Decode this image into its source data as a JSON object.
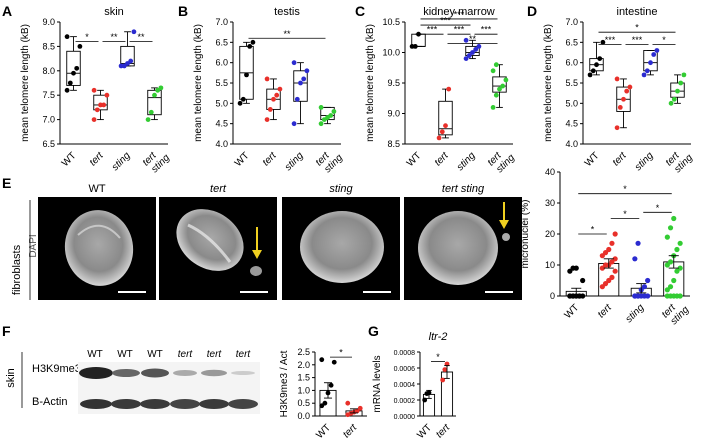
{
  "figure": {
    "panels": [
      {
        "letter": "A",
        "title": "skin",
        "ylabel": "mean telomere length (kB)"
      },
      {
        "letter": "B",
        "title": "testis",
        "ylabel": "mean telomere length (kB)"
      },
      {
        "letter": "C",
        "title": "kidney marrow",
        "ylabel": "mean telomere length (kB)"
      },
      {
        "letter": "D",
        "title": "intestine",
        "ylabel": "mean telomere length (kB)"
      },
      {
        "letter": "E",
        "side_label": "fibroblasts",
        "stain_label": "DAPI",
        "ylabel": "micronuclei (%)"
      },
      {
        "letter": "F",
        "tissue_label": "skin",
        "ylabel": "H3K9me3 / Act"
      },
      {
        "letter": "G",
        "title": "ltr-2",
        "ylabel": "mRNA levels"
      }
    ],
    "genotypes": [
      "WT",
      "tert",
      "sting",
      "tert sting"
    ],
    "micrograph_titles": [
      "WT",
      "tert",
      "sting",
      "tert  sting"
    ],
    "blot": {
      "lane_labels": [
        "WT",
        "WT",
        "WT",
        "tert",
        "tert",
        "tert"
      ],
      "rows": [
        "H3K9me3",
        "B-Actin"
      ]
    },
    "colors": {
      "WT": "#000000",
      "tert": "#e8302a",
      "sting": "#2b2bd0",
      "tert sting": "#33cc33",
      "arrow": "#f0d020"
    }
  },
  "chart_data": [
    {
      "panel": "A",
      "type": "box",
      "title": "skin",
      "ylabel": "mean telomere length (kB)",
      "ylim": [
        6.5,
        9.0
      ],
      "ticks": [
        "6.5",
        "7.0",
        "7.5",
        "8.0",
        "8.5",
        "9.0"
      ],
      "categories": [
        "WT",
        "tert",
        "sting",
        "tert sting"
      ],
      "boxes": [
        {
          "min": 7.6,
          "q1": 7.7,
          "med": 7.95,
          "q3": 8.4,
          "max": 8.7
        },
        {
          "min": 7.0,
          "q1": 7.2,
          "med": 7.3,
          "q3": 7.5,
          "max": 7.6
        },
        {
          "min": 8.1,
          "q1": 8.1,
          "med": 8.15,
          "q3": 8.5,
          "max": 8.8
        },
        {
          "min": 7.0,
          "q1": 7.1,
          "med": 7.45,
          "q3": 7.6,
          "max": 7.65
        }
      ],
      "points": [
        [
          7.6,
          7.75,
          7.95,
          8.05,
          8.5,
          8.7
        ],
        [
          7.0,
          7.2,
          7.3,
          7.3,
          7.5,
          7.6
        ],
        [
          8.1,
          8.1,
          8.15,
          8.2,
          8.8
        ],
        [
          7.0,
          7.15,
          7.5,
          7.6,
          7.65
        ]
      ],
      "sig": [
        {
          "a": 0,
          "b": 1,
          "label": "*",
          "y": 8.6
        },
        {
          "a": 1,
          "b": 2,
          "label": "**",
          "y": 8.6
        },
        {
          "a": 2,
          "b": 3,
          "label": "**",
          "y": 8.6
        }
      ]
    },
    {
      "panel": "B",
      "type": "box",
      "title": "testis",
      "ylabel": "mean telomere length (kB)",
      "ylim": [
        4.0,
        7.0
      ],
      "ticks": [
        "4.0",
        "4.5",
        "5.0",
        "5.5",
        "6.0",
        "6.5",
        "7.0"
      ],
      "categories": [
        "WT",
        "tert",
        "sting",
        "tert sting"
      ],
      "boxes": [
        {
          "min": 5.0,
          "q1": 5.1,
          "med": 5.75,
          "q3": 6.4,
          "max": 6.5
        },
        {
          "min": 4.6,
          "q1": 4.85,
          "med": 5.1,
          "q3": 5.35,
          "max": 5.6
        },
        {
          "min": 4.5,
          "q1": 5.05,
          "med": 5.5,
          "q3": 5.8,
          "max": 6.0
        },
        {
          "min": 4.5,
          "q1": 4.6,
          "med": 4.7,
          "q3": 4.9,
          "max": 4.9
        }
      ],
      "points": [
        [
          5.0,
          5.1,
          5.7,
          6.4,
          6.5
        ],
        [
          4.6,
          4.85,
          5.1,
          5.2,
          5.35,
          5.6
        ],
        [
          4.5,
          5.1,
          5.5,
          5.6,
          5.8,
          6.0
        ],
        [
          4.5,
          4.6,
          4.65,
          4.7,
          4.8,
          4.9
        ]
      ],
      "sig": [
        {
          "a": 0,
          "b": 3,
          "label": "**",
          "y": 6.6
        }
      ]
    },
    {
      "panel": "C",
      "type": "box",
      "title": "kidney marrow",
      "ylabel": "mean telomere length (kB)",
      "ylim": [
        8.5,
        10.5
      ],
      "ticks": [
        "8.5",
        "9.0",
        "9.5",
        "10.0",
        "10.5"
      ],
      "categories": [
        "WT",
        "tert",
        "sting",
        "tert sting"
      ],
      "boxes": [
        {
          "min": 10.1,
          "q1": 10.1,
          "med": 10.1,
          "q3": 10.3,
          "max": 10.3
        },
        {
          "min": 8.6,
          "q1": 8.65,
          "med": 8.75,
          "q3": 9.2,
          "max": 9.4
        },
        {
          "min": 9.9,
          "q1": 9.95,
          "med": 10.0,
          "q3": 10.1,
          "max": 10.2
        },
        {
          "min": 9.1,
          "q1": 9.35,
          "med": 9.45,
          "q3": 9.6,
          "max": 9.8
        }
      ],
      "points": [
        [
          10.1,
          10.1,
          10.3
        ],
        [
          8.6,
          8.7,
          8.8,
          9.4
        ],
        [
          9.9,
          9.95,
          10.0,
          10.05,
          10.1,
          10.2
        ],
        [
          9.1,
          9.3,
          9.4,
          9.45,
          9.55,
          9.7,
          9.8
        ]
      ],
      "sig": [
        {
          "a": 0,
          "b": 3,
          "label": "***",
          "y": 10.55
        },
        {
          "a": 0,
          "b": 2,
          "label": "***",
          "y": 10.45
        },
        {
          "a": 0,
          "b": 1,
          "label": "***",
          "y": 10.3
        },
        {
          "a": 1,
          "b": 2,
          "label": "***",
          "y": 10.3
        },
        {
          "a": 2,
          "b": 3,
          "label": "***",
          "y": 10.3
        },
        {
          "a": 1,
          "b": 3,
          "label": "**",
          "y": 10.15
        }
      ]
    },
    {
      "panel": "D",
      "type": "box",
      "title": "intestine",
      "ylabel": "mean telomere length (kB)",
      "ylim": [
        4.0,
        7.0
      ],
      "ticks": [
        "4.0",
        "4.5",
        "5.0",
        "5.5",
        "6.0",
        "6.5",
        "7.0"
      ],
      "categories": [
        "WT",
        "tert",
        "sting",
        "tert sting"
      ],
      "boxes": [
        {
          "min": 5.7,
          "q1": 5.8,
          "med": 5.95,
          "q3": 6.1,
          "max": 6.5
        },
        {
          "min": 4.4,
          "q1": 4.8,
          "med": 5.1,
          "q3": 5.4,
          "max": 5.6
        },
        {
          "min": 5.7,
          "q1": 5.8,
          "med": 6.0,
          "q3": 6.3,
          "max": 6.3
        },
        {
          "min": 5.0,
          "q1": 5.15,
          "med": 5.3,
          "q3": 5.5,
          "max": 5.7
        }
      ],
      "points": [
        [
          5.7,
          5.8,
          5.95,
          6.1,
          6.5
        ],
        [
          4.4,
          4.9,
          5.1,
          5.3,
          5.4,
          5.6
        ],
        [
          5.7,
          5.8,
          6.0,
          6.2,
          6.3
        ],
        [
          5.0,
          5.1,
          5.3,
          5.5,
          5.7
        ]
      ],
      "sig": [
        {
          "a": 0,
          "b": 3,
          "label": "*",
          "y": 6.75
        },
        {
          "a": 0,
          "b": 1,
          "label": "***",
          "y": 6.45
        },
        {
          "a": 1,
          "b": 2,
          "label": "***",
          "y": 6.45
        },
        {
          "a": 2,
          "b": 3,
          "label": "*",
          "y": 6.45
        }
      ]
    },
    {
      "panel": "E",
      "type": "bar",
      "ylabel": "micronuclei (%)",
      "ylim": [
        0,
        40
      ],
      "ticks": [
        "0",
        "10",
        "20",
        "30",
        "40"
      ],
      "categories": [
        "WT",
        "tert",
        "sting",
        "tert sting"
      ],
      "values": [
        1.5,
        10.5,
        2.5,
        11.0
      ],
      "sem": [
        1.0,
        1.5,
        1.5,
        2.0
      ],
      "points": [
        [
          0,
          0,
          0,
          0,
          0,
          0,
          0,
          0,
          0,
          5,
          8,
          9,
          9
        ],
        [
          3,
          4,
          5,
          6,
          8,
          9,
          10,
          10,
          11,
          12,
          13,
          14,
          15,
          17,
          20
        ],
        [
          0,
          0,
          0,
          0,
          0,
          0,
          0,
          2,
          3,
          5,
          12,
          17
        ],
        [
          0,
          0,
          0,
          0,
          0,
          2,
          3,
          5,
          8,
          9,
          10,
          11,
          13,
          15,
          17,
          19,
          22,
          25
        ]
      ],
      "sig": [
        {
          "a": 0,
          "b": 3,
          "label": "*",
          "y": 33
        },
        {
          "a": 0,
          "b": 1,
          "label": "*",
          "y": 20
        },
        {
          "a": 1,
          "b": 2,
          "label": "*",
          "y": 25
        },
        {
          "a": 2,
          "b": 3,
          "label": "*",
          "y": 27
        }
      ]
    },
    {
      "panel": "F",
      "type": "bar",
      "ylabel": "H3K9me3 / Act",
      "ylim": [
        0,
        2.5
      ],
      "ticks": [
        "0.0",
        "0.5",
        "1.0",
        "1.5",
        "2.0",
        "2.5"
      ],
      "categories": [
        "WT",
        "tert"
      ],
      "values": [
        1.0,
        0.2
      ],
      "sem": [
        0.3,
        0.08
      ],
      "points": [
        [
          0.4,
          0.5,
          0.9,
          1.2,
          2.1,
          2.2
        ],
        [
          0.05,
          0.1,
          0.15,
          0.2,
          0.3,
          0.5
        ]
      ],
      "sig": [
        {
          "a": 0,
          "b": 1,
          "label": "*",
          "y": 2.3
        }
      ]
    },
    {
      "panel": "G",
      "type": "bar",
      "title": "ltr-2",
      "ylabel": "mRNA levels",
      "ylim": [
        0,
        0.0008
      ],
      "ticks": [
        "0.0000",
        "0.0002",
        "0.0004",
        "0.0006",
        "0.0008"
      ],
      "categories": [
        "WT",
        "tert"
      ],
      "values": [
        0.00027,
        0.00055
      ],
      "sem": [
        5e-05,
        8e-05
      ],
      "points": [
        [
          0.0002,
          0.00028,
          0.00029
        ],
        [
          0.00045,
          0.00058,
          0.00065
        ]
      ],
      "sig": [
        {
          "a": 0,
          "b": 1,
          "label": "*",
          "y": 0.00068
        }
      ]
    }
  ]
}
